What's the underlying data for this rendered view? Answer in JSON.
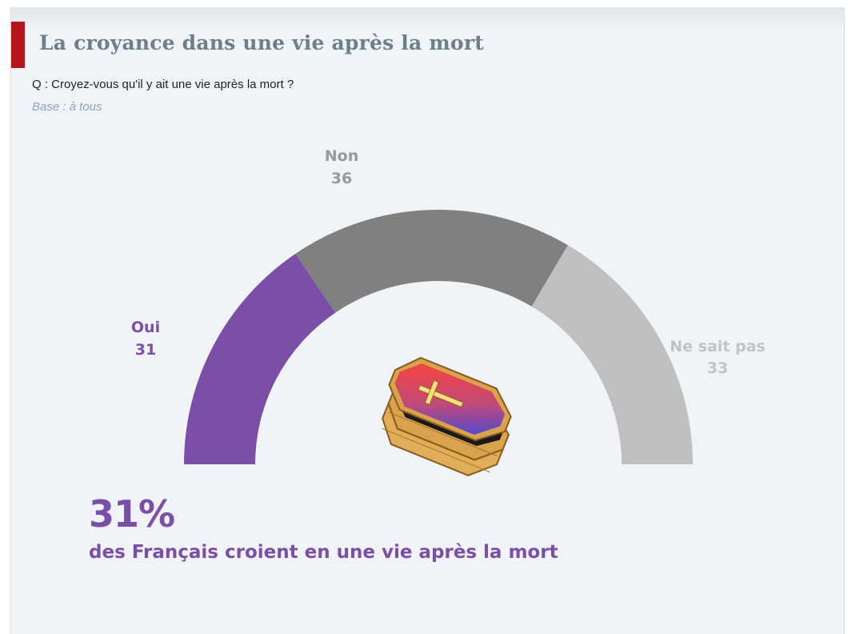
{
  "header": {
    "title": "La croyance dans une vie après la mort",
    "question": "Q : Croyez-vous qu'il y ait une vie après la mort ?",
    "base": "Base : à tous"
  },
  "colors": {
    "accent": "#b3171d",
    "oui": "#7b4ea8",
    "non": "#808080",
    "ne_sait_pas": "#c0c0c0"
  },
  "chart_data": {
    "type": "pie",
    "variant": "semi-circle donut gauge",
    "categories": [
      "Oui",
      "Non",
      "Ne sait pas"
    ],
    "values": [
      31,
      36,
      33
    ],
    "center_icon": "coffin-icon",
    "labels": [
      {
        "name": "Oui",
        "value": "31"
      },
      {
        "name": "Non",
        "value": "36"
      },
      {
        "name": "Ne sait pas",
        "value": "33"
      }
    ]
  },
  "highlight": {
    "value": "31%",
    "caption": "des Français croient en une vie après la mort"
  }
}
